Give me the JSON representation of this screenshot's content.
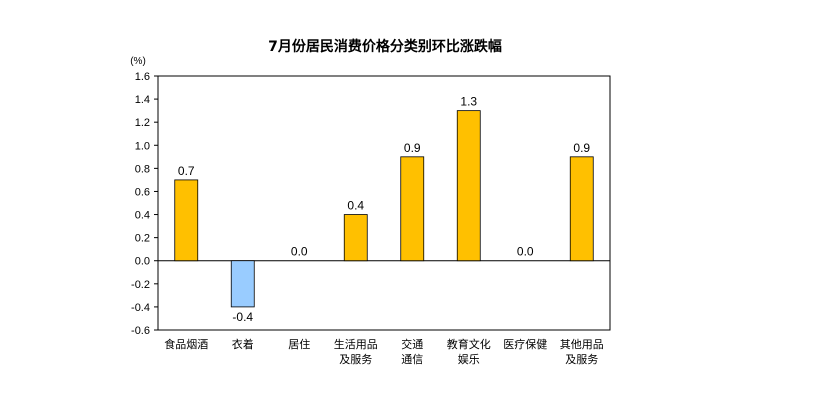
{
  "chart_data": {
    "type": "bar",
    "title": "7月份居民消费价格分类别环比涨跌幅",
    "unit_label": "(%)",
    "categories": [
      [
        "食品烟酒"
      ],
      [
        "衣着"
      ],
      [
        "居住"
      ],
      [
        "生活用品",
        "及服务"
      ],
      [
        "交通",
        "通信"
      ],
      [
        "教育文化",
        "娱乐"
      ],
      [
        "医疗保健"
      ],
      [
        "其他用品",
        "及服务"
      ]
    ],
    "values": [
      0.7,
      -0.4,
      0.0,
      0.4,
      0.9,
      1.3,
      0.0,
      0.9
    ],
    "value_labels": [
      "0.7",
      "-0.4",
      "0.0",
      "0.4",
      "0.9",
      "1.3",
      "0.0",
      "0.9"
    ],
    "yticks": [
      "1.6",
      "1.4",
      "1.2",
      "1.0",
      "0.8",
      "0.6",
      "0.4",
      "0.2",
      "0.0",
      "-0.2",
      "-0.4",
      "-0.6"
    ],
    "ylim": [
      -0.6,
      1.6
    ],
    "positive_color": "#ffc000",
    "negative_color": "#99ccff",
    "bar_edge_color": "#000000",
    "grid": false,
    "legend": "none"
  }
}
